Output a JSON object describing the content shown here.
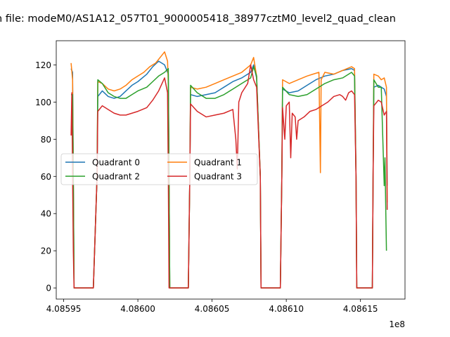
{
  "chart_data": {
    "type": "line",
    "title": "n file: modeM0/AS1A12_057T01_9000005418_38977cztM0_level2_quad_clean",
    "xlabel": "",
    "ylabel": "",
    "x_offset_label": "1e8",
    "xlim": [
      4.085945,
      4.08618
    ],
    "ylim": [
      -6,
      133
    ],
    "x_ticks": [
      4.08595,
      4.086,
      4.08605,
      4.0861,
      4.08615
    ],
    "x_tick_labels": [
      "4.08595",
      "4.08600",
      "4.08605",
      "4.08610",
      "4.08615"
    ],
    "y_ticks": [
      0,
      20,
      40,
      60,
      80,
      100,
      120
    ],
    "y_tick_labels": [
      "0",
      "20",
      "40",
      "60",
      "80",
      "100",
      "120"
    ],
    "legend_position": "center-left",
    "legend_columns": 2,
    "series": [
      {
        "name": "Quadrant 0",
        "color": "#1f77b4",
        "points": [
          [
            4.085955,
            118
          ],
          [
            4.085956,
            116
          ],
          [
            4.0859565,
            60
          ],
          [
            4.085957,
            0
          ],
          [
            4.08597,
            0
          ],
          [
            4.0859725,
            60
          ],
          [
            4.085973,
            103
          ],
          [
            4.085976,
            106
          ],
          [
            4.08598,
            103
          ],
          [
            4.085984,
            102
          ],
          [
            4.085988,
            103
          ],
          [
            4.085992,
            106
          ],
          [
            4.085996,
            109
          ],
          [
            4.086,
            111
          ],
          [
            4.086006,
            115
          ],
          [
            4.08601,
            119
          ],
          [
            4.086014,
            122
          ],
          [
            4.086018,
            120
          ],
          [
            4.0860205,
            115
          ],
          [
            4.086021,
            60
          ],
          [
            4.0860215,
            0
          ],
          [
            4.086034,
            0
          ],
          [
            4.086035,
            60
          ],
          [
            4.0860355,
            104
          ],
          [
            4.08604,
            103
          ],
          [
            4.086046,
            104
          ],
          [
            4.086052,
            105
          ],
          [
            4.086058,
            108
          ],
          [
            4.086064,
            111
          ],
          [
            4.08607,
            113
          ],
          [
            4.086076,
            116
          ],
          [
            4.086078,
            120
          ],
          [
            4.08608,
            113
          ],
          [
            4.0860825,
            60
          ],
          [
            4.086083,
            0
          ],
          [
            4.086096,
            0
          ],
          [
            4.086097,
            60
          ],
          [
            4.0860975,
            107
          ],
          [
            4.086102,
            105
          ],
          [
            4.086108,
            106
          ],
          [
            4.086114,
            109
          ],
          [
            4.08612,
            112
          ],
          [
            4.086126,
            114
          ],
          [
            4.086132,
            115
          ],
          [
            4.086138,
            117
          ],
          [
            4.086144,
            118
          ],
          [
            4.086146,
            117
          ],
          [
            4.086147,
            60
          ],
          [
            4.0861475,
            0
          ],
          [
            4.086158,
            0
          ],
          [
            4.0861585,
            60
          ],
          [
            4.086159,
            108
          ],
          [
            4.086162,
            109
          ],
          [
            4.086164,
            108
          ],
          [
            4.086166,
            107
          ],
          [
            4.0861675,
            103
          ],
          [
            4.086168,
            55
          ]
        ]
      },
      {
        "name": "Quadrant 1",
        "color": "#ff7f0e",
        "points": [
          [
            4.085955,
            121
          ],
          [
            4.085956,
            112
          ],
          [
            4.0859565,
            60
          ],
          [
            4.085957,
            0
          ],
          [
            4.08597,
            0
          ],
          [
            4.0859725,
            60
          ],
          [
            4.085973,
            111
          ],
          [
            4.085976,
            110
          ],
          [
            4.08598,
            107
          ],
          [
            4.085984,
            106
          ],
          [
            4.085988,
            107
          ],
          [
            4.085992,
            109
          ],
          [
            4.085996,
            112
          ],
          [
            4.086,
            114
          ],
          [
            4.086004,
            116
          ],
          [
            4.086008,
            119
          ],
          [
            4.086012,
            121
          ],
          [
            4.086016,
            125
          ],
          [
            4.086018,
            127
          ],
          [
            4.08602,
            122
          ],
          [
            4.0860205,
            110
          ],
          [
            4.086021,
            60
          ],
          [
            4.0860215,
            0
          ],
          [
            4.086034,
            0
          ],
          [
            4.086035,
            60
          ],
          [
            4.0860355,
            108
          ],
          [
            4.08604,
            107
          ],
          [
            4.086046,
            108
          ],
          [
            4.086052,
            110
          ],
          [
            4.086058,
            112
          ],
          [
            4.086064,
            114
          ],
          [
            4.08607,
            116
          ],
          [
            4.086076,
            120
          ],
          [
            4.086078,
            124
          ],
          [
            4.08608,
            114
          ],
          [
            4.0860825,
            60
          ],
          [
            4.086083,
            0
          ],
          [
            4.086096,
            0
          ],
          [
            4.086097,
            60
          ],
          [
            4.0860975,
            112
          ],
          [
            4.086102,
            110
          ],
          [
            4.086108,
            112
          ],
          [
            4.086114,
            114
          ],
          [
            4.086118,
            115
          ],
          [
            4.086122,
            116
          ],
          [
            4.086123,
            62
          ],
          [
            4.0861235,
            112
          ],
          [
            4.086126,
            116
          ],
          [
            4.086132,
            115
          ],
          [
            4.086138,
            117
          ],
          [
            4.086144,
            119
          ],
          [
            4.086146,
            118
          ],
          [
            4.086147,
            60
          ],
          [
            4.0861475,
            0
          ],
          [
            4.086158,
            0
          ],
          [
            4.0861585,
            60
          ],
          [
            4.086159,
            115
          ],
          [
            4.086162,
            114
          ],
          [
            4.086164,
            112
          ],
          [
            4.086166,
            113
          ],
          [
            4.0861675,
            108
          ],
          [
            4.086168,
            46
          ]
        ]
      },
      {
        "name": "Quadrant 2",
        "color": "#2ca02c",
        "points": [
          [
            4.085955,
            104
          ],
          [
            4.085956,
            104
          ],
          [
            4.0859565,
            60
          ],
          [
            4.085957,
            0
          ],
          [
            4.08597,
            0
          ],
          [
            4.0859725,
            60
          ],
          [
            4.085973,
            112
          ],
          [
            4.085976,
            110
          ],
          [
            4.08598,
            105
          ],
          [
            4.085984,
            103
          ],
          [
            4.085988,
            102
          ],
          [
            4.085992,
            102
          ],
          [
            4.085996,
            104
          ],
          [
            4.086,
            106
          ],
          [
            4.086006,
            108
          ],
          [
            4.08601,
            111
          ],
          [
            4.086014,
            114
          ],
          [
            4.086018,
            116
          ],
          [
            4.0860205,
            118
          ],
          [
            4.086021,
            60
          ],
          [
            4.0860215,
            0
          ],
          [
            4.086034,
            0
          ],
          [
            4.086035,
            60
          ],
          [
            4.0860355,
            109
          ],
          [
            4.08604,
            105
          ],
          [
            4.086046,
            102
          ],
          [
            4.086052,
            102
          ],
          [
            4.086058,
            104
          ],
          [
            4.086064,
            107
          ],
          [
            4.08607,
            110
          ],
          [
            4.086076,
            113
          ],
          [
            4.086078,
            119
          ],
          [
            4.08608,
            114
          ],
          [
            4.0860825,
            60
          ],
          [
            4.086083,
            0
          ],
          [
            4.086096,
            0
          ],
          [
            4.086097,
            60
          ],
          [
            4.0860975,
            108
          ],
          [
            4.086102,
            104
          ],
          [
            4.086108,
            103
          ],
          [
            4.086114,
            104
          ],
          [
            4.08612,
            107
          ],
          [
            4.086126,
            110
          ],
          [
            4.086132,
            112
          ],
          [
            4.086138,
            113
          ],
          [
            4.086144,
            116
          ],
          [
            4.086146,
            114
          ],
          [
            4.086147,
            60
          ],
          [
            4.0861475,
            0
          ],
          [
            4.086158,
            0
          ],
          [
            4.0861585,
            60
          ],
          [
            4.086159,
            112
          ],
          [
            4.086162,
            108
          ],
          [
            4.086164,
            108
          ],
          [
            4.086166,
            55
          ],
          [
            4.0861665,
            70
          ],
          [
            4.086167,
            44
          ],
          [
            4.0861675,
            20
          ]
        ]
      },
      {
        "name": "Quadrant 3",
        "color": "#d62728",
        "points": [
          [
            4.085955,
            82
          ],
          [
            4.0859555,
            105
          ],
          [
            4.085956,
            60
          ],
          [
            4.0859565,
            20
          ],
          [
            4.085957,
            0
          ],
          [
            4.08597,
            0
          ],
          [
            4.0859725,
            60
          ],
          [
            4.085973,
            95
          ],
          [
            4.085976,
            98
          ],
          [
            4.08598,
            96
          ],
          [
            4.085984,
            94
          ],
          [
            4.085988,
            93
          ],
          [
            4.085992,
            93
          ],
          [
            4.085996,
            94
          ],
          [
            4.086,
            95
          ],
          [
            4.086006,
            97
          ],
          [
            4.08601,
            101
          ],
          [
            4.086014,
            106
          ],
          [
            4.086018,
            113
          ],
          [
            4.08602,
            105
          ],
          [
            4.0860205,
            60
          ],
          [
            4.086021,
            0
          ],
          [
            4.086034,
            0
          ],
          [
            4.086035,
            60
          ],
          [
            4.0860355,
            99
          ],
          [
            4.08604,
            95
          ],
          [
            4.086046,
            92
          ],
          [
            4.086052,
            93
          ],
          [
            4.086058,
            94
          ],
          [
            4.086064,
            96
          ],
          [
            4.086066,
            80
          ],
          [
            4.086067,
            64
          ],
          [
            4.086068,
            100
          ],
          [
            4.08607,
            105
          ],
          [
            4.086074,
            110
          ],
          [
            4.086076,
            120
          ],
          [
            4.086078,
            112
          ],
          [
            4.08608,
            108
          ],
          [
            4.0860825,
            60
          ],
          [
            4.086083,
            0
          ],
          [
            4.086096,
            0
          ],
          [
            4.086097,
            60
          ],
          [
            4.0860975,
            97
          ],
          [
            4.086099,
            80
          ],
          [
            4.0861,
            98
          ],
          [
            4.086102,
            100
          ],
          [
            4.086103,
            70
          ],
          [
            4.086104,
            94
          ],
          [
            4.086106,
            92
          ],
          [
            4.086107,
            80
          ],
          [
            4.086108,
            90
          ],
          [
            4.086112,
            92
          ],
          [
            4.086116,
            95
          ],
          [
            4.08612,
            96
          ],
          [
            4.086124,
            98
          ],
          [
            4.086128,
            100
          ],
          [
            4.086132,
            103
          ],
          [
            4.086136,
            104
          ],
          [
            4.086138,
            103
          ],
          [
            4.08614,
            101
          ],
          [
            4.086142,
            105
          ],
          [
            4.086144,
            106
          ],
          [
            4.086146,
            104
          ],
          [
            4.086147,
            60
          ],
          [
            4.0861475,
            0
          ],
          [
            4.086158,
            0
          ],
          [
            4.0861585,
            60
          ],
          [
            4.086159,
            98
          ],
          [
            4.086162,
            101
          ],
          [
            4.086164,
            100
          ],
          [
            4.086166,
            93
          ],
          [
            4.0861675,
            95
          ],
          [
            4.086168,
            42
          ]
        ]
      }
    ]
  }
}
